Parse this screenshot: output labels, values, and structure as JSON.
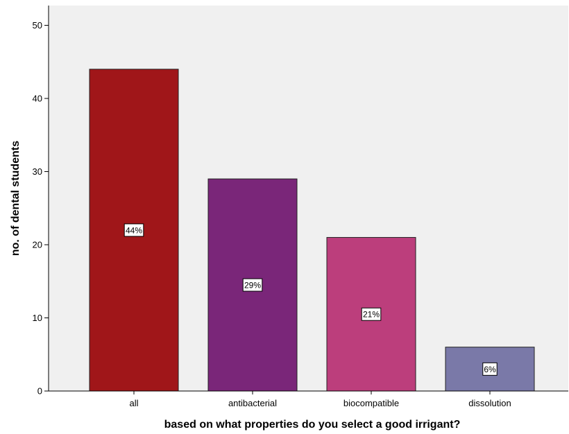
{
  "chart_data": {
    "type": "bar",
    "title": "",
    "xlabel": "based on what properties do you select a good irrigant?",
    "ylabel": "no. of dental students",
    "categories": [
      "all",
      "antibacterial",
      "biocompatible",
      "dissolution"
    ],
    "values": [
      44,
      29,
      21,
      6
    ],
    "data_labels": [
      "44%",
      "29%",
      "21%",
      "6%"
    ],
    "ylim": [
      0,
      53
    ],
    "yticks": [
      0,
      10,
      20,
      30,
      40,
      50
    ],
    "ytick_labels": [
      "0",
      "10",
      "20",
      "30",
      "40",
      "50"
    ],
    "grid": false,
    "legend": "none",
    "colors": {
      "plot_background": "#f0f0f0",
      "bars": [
        "#a01619",
        "#7a2679",
        "#bc3e7c",
        "#7a79a8"
      ],
      "bar_stroke": "#222222"
    }
  }
}
